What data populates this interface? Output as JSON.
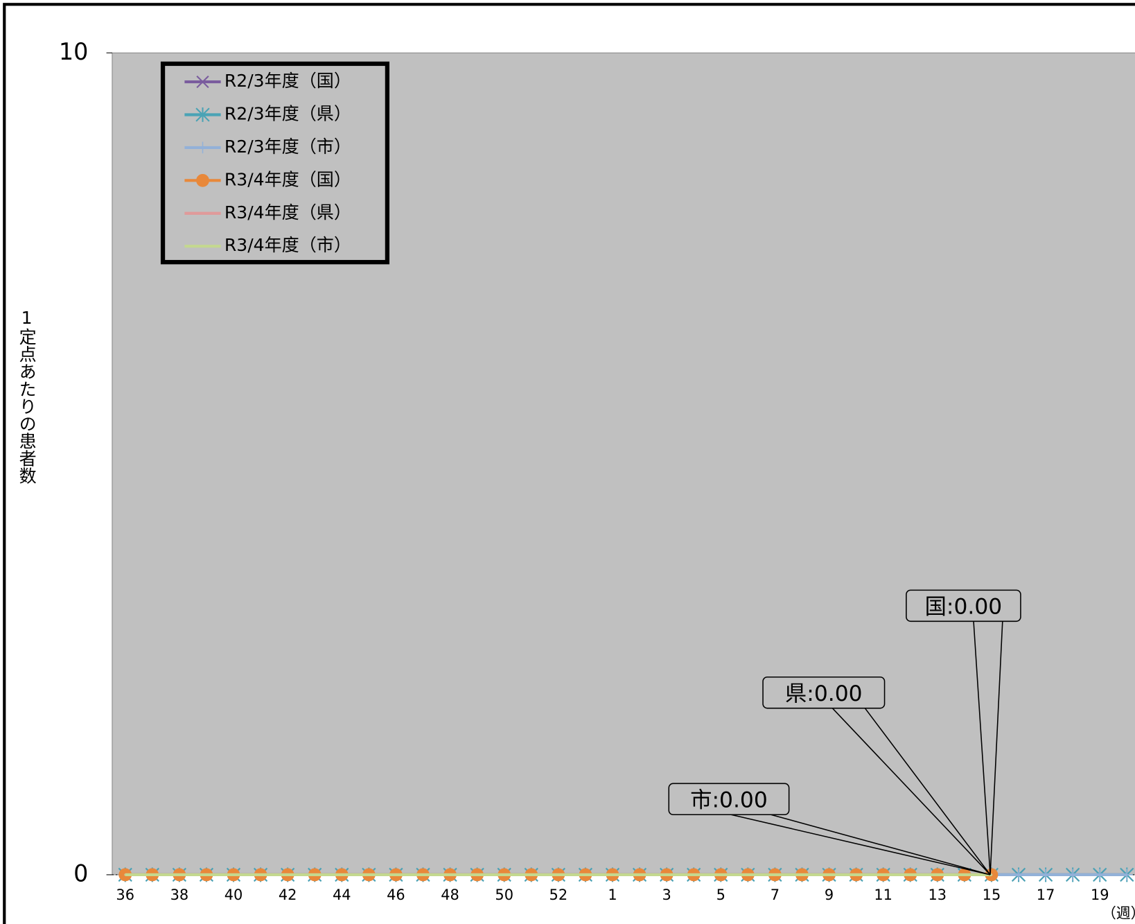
{
  "chart_data": {
    "type": "line",
    "y_label": "1定点あたりの患者数",
    "x_label": "（週）",
    "categories": [
      36,
      null,
      38,
      null,
      40,
      null,
      42,
      null,
      44,
      null,
      46,
      null,
      48,
      null,
      50,
      null,
      52,
      null,
      1,
      null,
      3,
      null,
      5,
      null,
      7,
      null,
      9,
      null,
      11,
      null,
      13,
      null,
      15,
      null,
      17,
      null,
      19,
      null
    ],
    "ylim": [
      0,
      10
    ],
    "yticks": [
      0,
      10
    ],
    "series": [
      {
        "name": "R2/3年度（国）",
        "color": "#7a5c9e",
        "marker": "x",
        "values": [
          0,
          0,
          0,
          0,
          0,
          0,
          0,
          0,
          0,
          0,
          0,
          0,
          0,
          0,
          0,
          0,
          0,
          0,
          0,
          0,
          0,
          0,
          0,
          0,
          0,
          0,
          0,
          0,
          0,
          0,
          0,
          0,
          0,
          0,
          0,
          0,
          0,
          0
        ]
      },
      {
        "name": "R2/3年度（県）",
        "color": "#4aa3b5",
        "marker": "star",
        "values": [
          0,
          0,
          0,
          0,
          0,
          0,
          0,
          0,
          0,
          0,
          0,
          0,
          0,
          0,
          0,
          0,
          0,
          0,
          0,
          0,
          0,
          0,
          0,
          0,
          0,
          0,
          0,
          0,
          0,
          0,
          0,
          0,
          0,
          0,
          0,
          0,
          0,
          0
        ]
      },
      {
        "name": "R2/3年度（市）",
        "color": "#93b1d8",
        "marker": "plus",
        "values": [
          0,
          0,
          0,
          0,
          0,
          0,
          0,
          0,
          0,
          0,
          0,
          0,
          0,
          0,
          0,
          0,
          0,
          0,
          0,
          0,
          0,
          0,
          0,
          0,
          0,
          0,
          0,
          0,
          0,
          0,
          0,
          0,
          0,
          0,
          0,
          0,
          0,
          0
        ]
      },
      {
        "name": "R3/4年度（国）",
        "color": "#e8883a",
        "marker": "circle",
        "values": [
          0,
          0,
          0,
          0,
          0,
          0,
          0,
          0,
          0,
          0,
          0,
          0,
          0,
          0,
          0,
          0,
          0,
          0,
          0,
          0,
          0,
          0,
          0,
          0,
          0,
          0,
          0,
          0,
          0,
          0,
          0,
          0,
          0,
          null,
          null,
          null,
          null,
          null
        ]
      },
      {
        "name": "R3/4年度（県）",
        "color": "#e09a9a",
        "marker": "none",
        "values": [
          0,
          0,
          0,
          0,
          0,
          0,
          0,
          0,
          0,
          0,
          0,
          0,
          0,
          0,
          0,
          0,
          0,
          0,
          0,
          0,
          0,
          0,
          0,
          0,
          0,
          0,
          0,
          0,
          0,
          0,
          0,
          0,
          0,
          null,
          null,
          null,
          null,
          null
        ]
      },
      {
        "name": "R3/4年度（市）",
        "color": "#c4d88f",
        "marker": "none",
        "values": [
          0,
          0,
          0,
          0,
          0,
          0,
          0,
          0,
          0,
          0,
          0,
          0,
          0,
          0,
          0,
          0,
          0,
          0,
          0,
          0,
          0,
          0,
          0,
          0,
          0,
          0,
          0,
          0,
          0,
          0,
          0,
          0,
          0,
          null,
          null,
          null,
          null,
          null
        ]
      }
    ],
    "annotations": [
      "国:0.00",
      "県:0.00",
      "市:0.00"
    ]
  }
}
